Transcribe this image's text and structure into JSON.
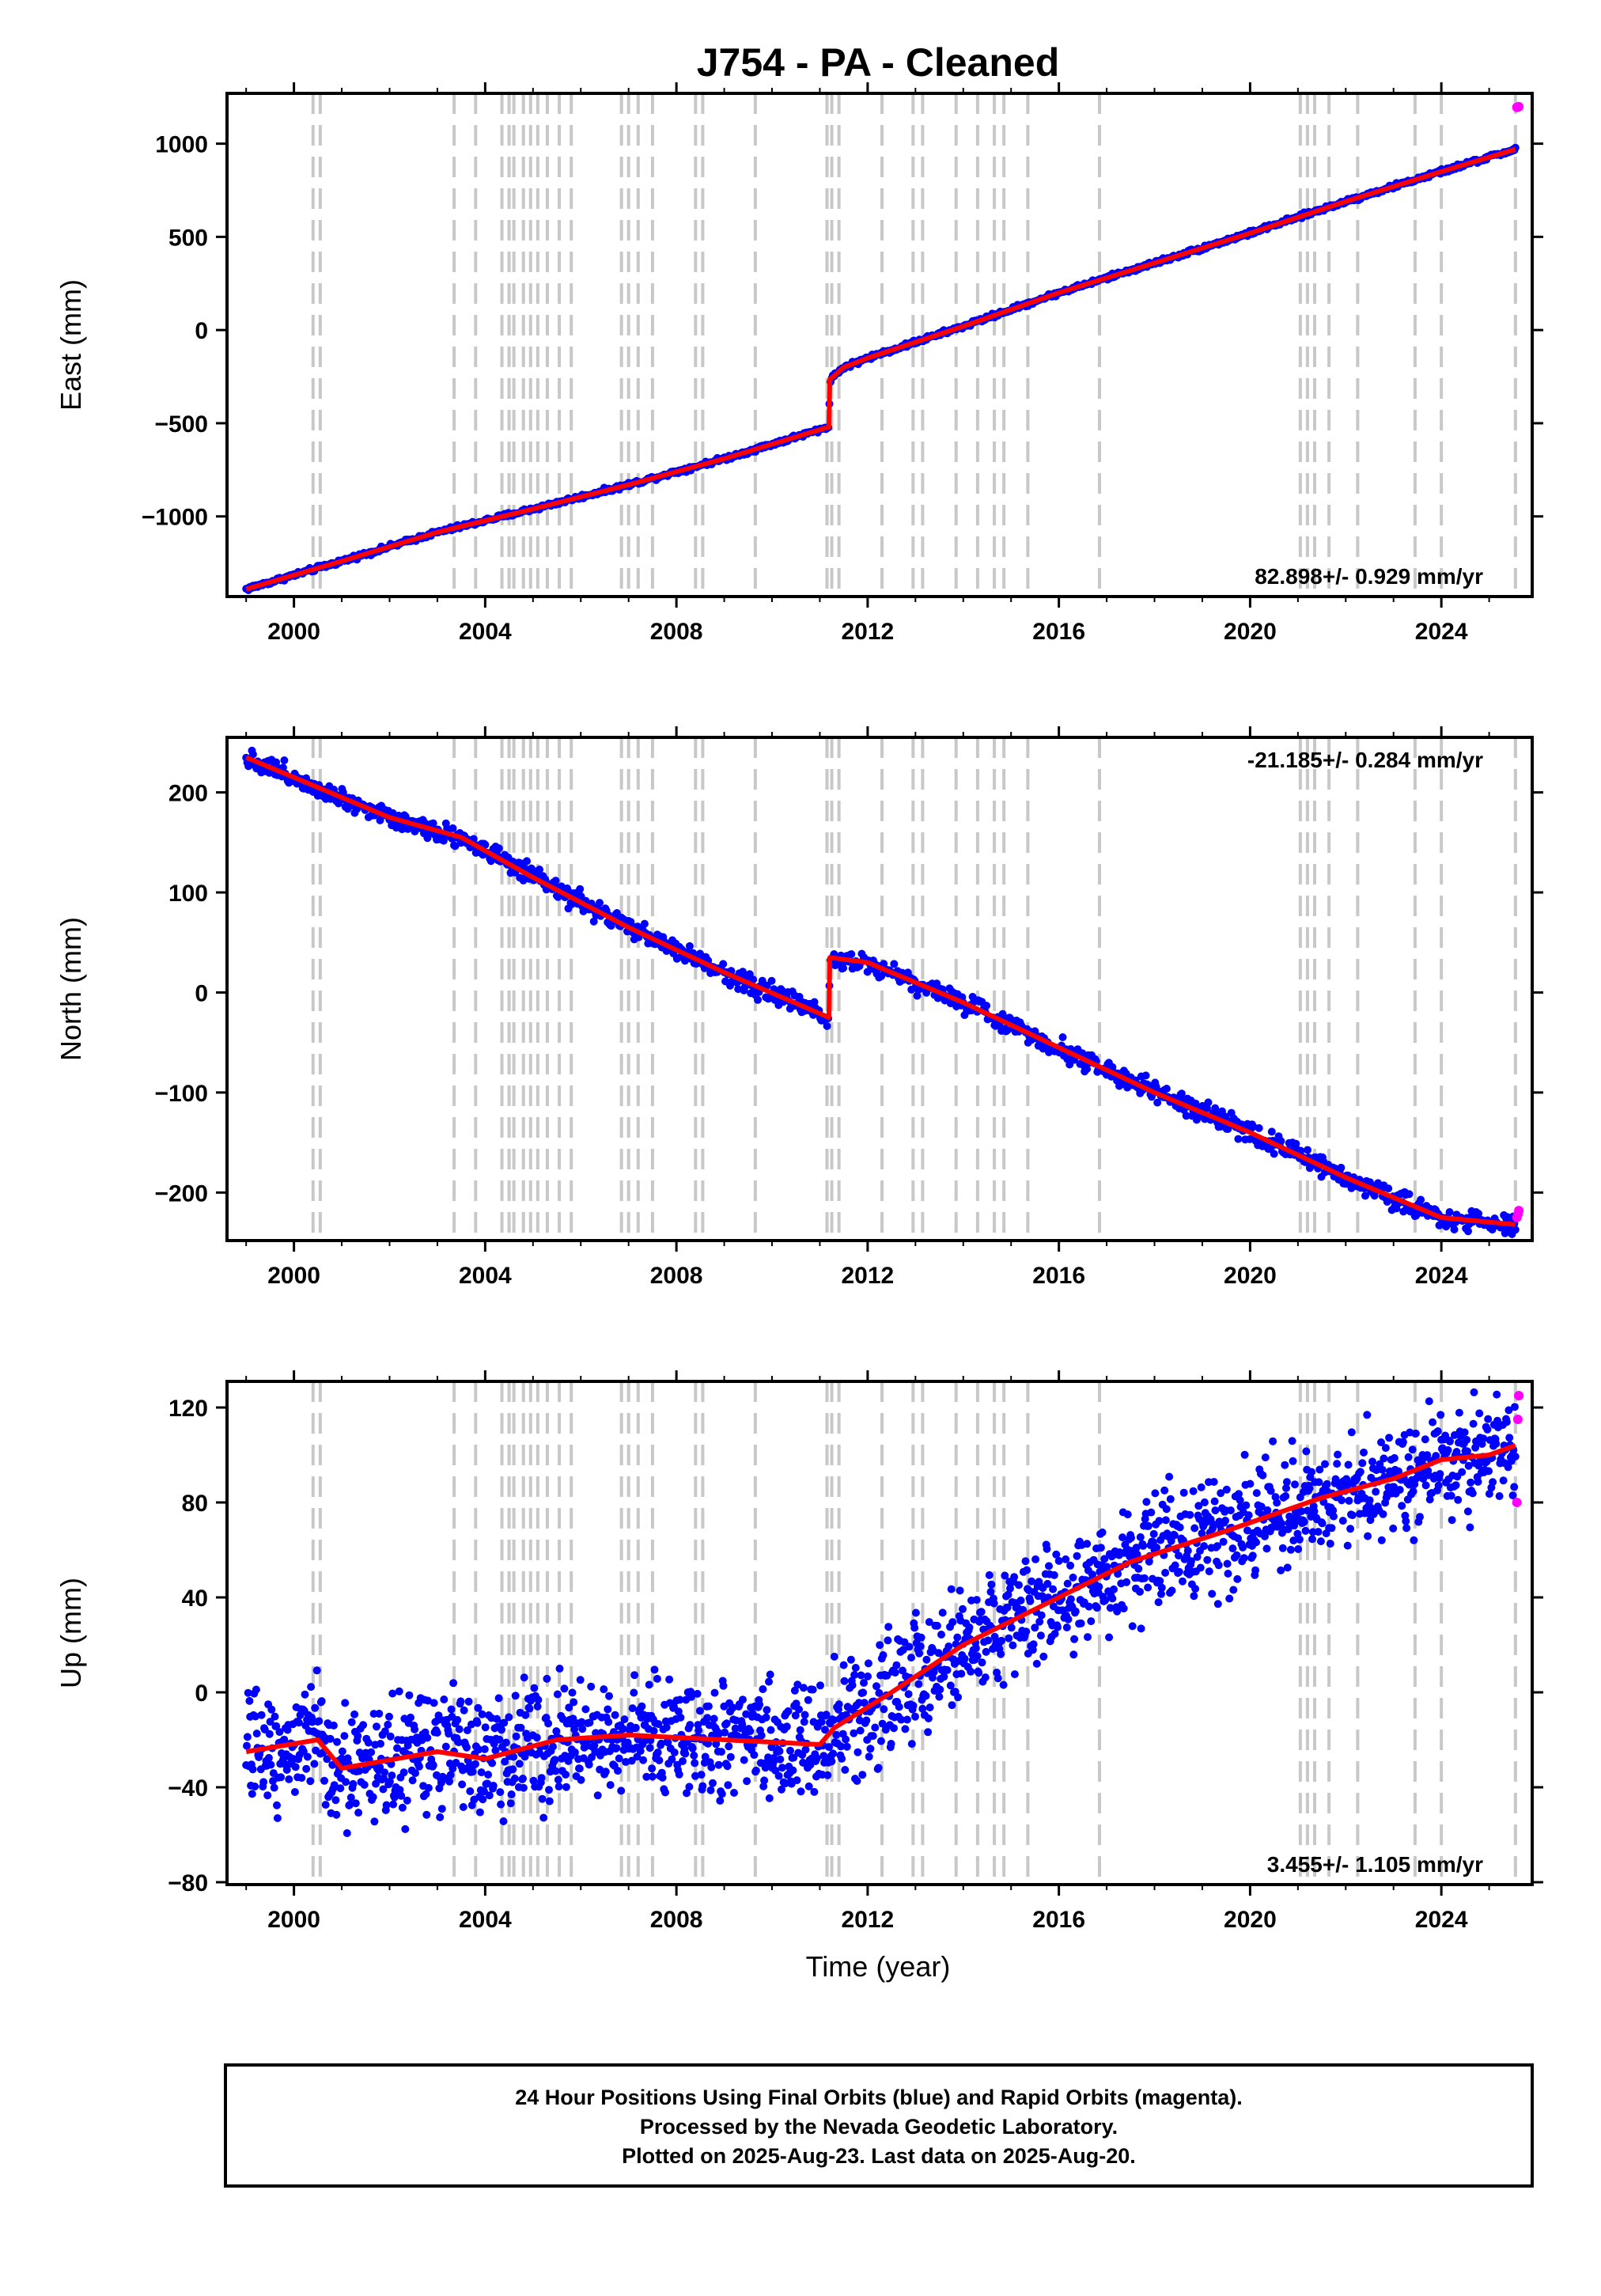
{
  "title": "J754  - PA - Cleaned",
  "x_label": "Time (year)",
  "footer": {
    "line1": "24 Hour Positions Using Final Orbits (blue) and Rapid Orbits (magenta).",
    "line2": "Processed by the Nevada Geodetic Laboratory.",
    "line3": "Plotted on 2025-Aug-23. Last data on 2025-Aug-20."
  },
  "colors": {
    "final_orbits": "#0000ff",
    "rapid_orbits": "#ff00ff",
    "model": "#ff0000",
    "steps": "#c8c8c8"
  },
  "chart_data": [
    {
      "type": "scatter",
      "ylabel": "East (mm)",
      "rate_label": "82.898+/- 0.929 mm/yr",
      "rate_position": "bottom-right",
      "xlim": [
        1998.6,
        2025.9
      ],
      "ylim": [
        -1430,
        1270
      ],
      "xticks": [
        2000,
        2004,
        2008,
        2012,
        2016,
        2020,
        2024
      ],
      "yticks": [
        -1000,
        -500,
        0,
        500,
        1000
      ],
      "yticklabels": [
        "−1000",
        "−500",
        "0",
        "500",
        "1000"
      ],
      "steps": [
        2000.4,
        2000.55,
        2003.35,
        2003.8,
        2004.35,
        2004.5,
        2004.6,
        2004.8,
        2004.95,
        2005.1,
        2005.3,
        2005.55,
        2005.8,
        2006.85,
        2007.0,
        2007.2,
        2007.5,
        2008.4,
        2008.55,
        2009.65,
        2011.15,
        2011.25,
        2011.4,
        2012.3,
        2012.95,
        2013.15,
        2013.85,
        2014.3,
        2014.65,
        2014.85,
        2015.35,
        2016.85,
        2021.05,
        2021.2,
        2021.35,
        2021.65,
        2022.25,
        2023.45,
        2024.0,
        2025.55
      ],
      "series": [
        {
          "name": "Final Orbits",
          "x": [
            1999.0,
            2001.0,
            2003.0,
            2005.0,
            2007.0,
            2009.0,
            2011.19,
            2011.21,
            2011.5,
            2012.0,
            2013.0,
            2014.0,
            2016.0,
            2018.0,
            2020.0,
            2022.0,
            2024.0,
            2025.55
          ],
          "y": [
            -1390,
            -1240,
            -1085,
            -960,
            -830,
            -690,
            -520,
            -265,
            -200,
            -150,
            -65,
            20,
            200,
            360,
            520,
            690,
            850,
            970
          ]
        },
        {
          "name": "Rapid Orbits",
          "x": [
            2025.58,
            2025.6,
            2025.62
          ],
          "y": [
            1195,
            1197,
            1199
          ]
        }
      ]
    },
    {
      "type": "scatter",
      "ylabel": "North (mm)",
      "rate_label": "-21.185+/- 0.284 mm/yr",
      "rate_position": "top-right",
      "xlim": [
        1998.6,
        2025.9
      ],
      "ylim": [
        -248,
        255
      ],
      "xticks": [
        2000,
        2004,
        2008,
        2012,
        2016,
        2020,
        2024
      ],
      "yticks": [
        -200,
        -100,
        0,
        100,
        200
      ],
      "yticklabels": [
        "−200",
        "−100",
        "0",
        "100",
        "200"
      ],
      "steps": [
        2000.4,
        2000.55,
        2003.35,
        2003.8,
        2004.35,
        2004.5,
        2004.6,
        2004.8,
        2004.95,
        2005.1,
        2005.3,
        2005.55,
        2005.8,
        2006.85,
        2007.0,
        2007.2,
        2007.5,
        2008.4,
        2008.55,
        2009.65,
        2011.15,
        2011.25,
        2011.4,
        2012.3,
        2012.95,
        2013.15,
        2013.85,
        2014.3,
        2014.65,
        2014.85,
        2015.35,
        2016.85,
        2021.05,
        2021.2,
        2021.35,
        2021.65,
        2022.25,
        2023.45,
        2024.0,
        2025.55
      ],
      "series": [
        {
          "name": "Final Orbits",
          "x": [
            1999.0,
            2000.5,
            2002.0,
            2003.5,
            2005.0,
            2007.0,
            2009.0,
            2011.19,
            2011.21,
            2012.0,
            2014.0,
            2016.0,
            2018.0,
            2020.0,
            2022.0,
            2024.0,
            2025.55
          ],
          "y": [
            235,
            205,
            175,
            155,
            115,
            65,
            20,
            -25,
            35,
            30,
            -10,
            -55,
            -100,
            -140,
            -185,
            -225,
            -232
          ]
        },
        {
          "name": "Rapid Orbits",
          "x": [
            2025.58,
            2025.6,
            2025.62
          ],
          "y": [
            -225,
            -222,
            -218
          ]
        }
      ]
    },
    {
      "type": "scatter",
      "ylabel": "Up (mm)",
      "rate_label": "3.455+/- 1.105 mm/yr",
      "rate_position": "bottom-right",
      "xlim": [
        1998.6,
        2025.9
      ],
      "ylim": [
        -81,
        131
      ],
      "xticks": [
        2000,
        2004,
        2008,
        2012,
        2016,
        2020,
        2024
      ],
      "yticks": [
        -80,
        -40,
        0,
        40,
        80,
        120
      ],
      "yticklabels": [
        "−80",
        "−40",
        "0",
        "40",
        "80",
        "120"
      ],
      "steps": [
        2000.4,
        2000.55,
        2003.35,
        2003.8,
        2004.35,
        2004.5,
        2004.6,
        2004.8,
        2004.95,
        2005.1,
        2005.3,
        2005.55,
        2005.8,
        2006.85,
        2007.0,
        2007.2,
        2007.5,
        2008.4,
        2008.55,
        2009.65,
        2011.15,
        2011.25,
        2011.4,
        2012.3,
        2012.95,
        2013.15,
        2013.85,
        2014.3,
        2014.65,
        2014.85,
        2015.35,
        2016.85,
        2021.05,
        2021.2,
        2021.35,
        2021.65,
        2022.25,
        2023.45,
        2024.0,
        2025.55
      ],
      "series": [
        {
          "name": "Final Orbits",
          "x": [
            1999.0,
            2000.5,
            2001.0,
            2003.0,
            2004.0,
            2005.5,
            2007.0,
            2009.0,
            2011.0,
            2011.3,
            2012.5,
            2014.0,
            2015.5,
            2017.5,
            2019.5,
            2021.5,
            2023.0,
            2024.0,
            2025.0,
            2025.55
          ],
          "y": [
            -25,
            -20,
            -32,
            -25,
            -28,
            -20,
            -18,
            -20,
            -22,
            -15,
            0,
            20,
            35,
            55,
            68,
            82,
            90,
            98,
            100,
            104
          ]
        },
        {
          "name": "Rapid Orbits",
          "x": [
            2025.58,
            2025.6,
            2025.62
          ],
          "y": [
            80,
            115,
            125
          ]
        }
      ]
    }
  ]
}
